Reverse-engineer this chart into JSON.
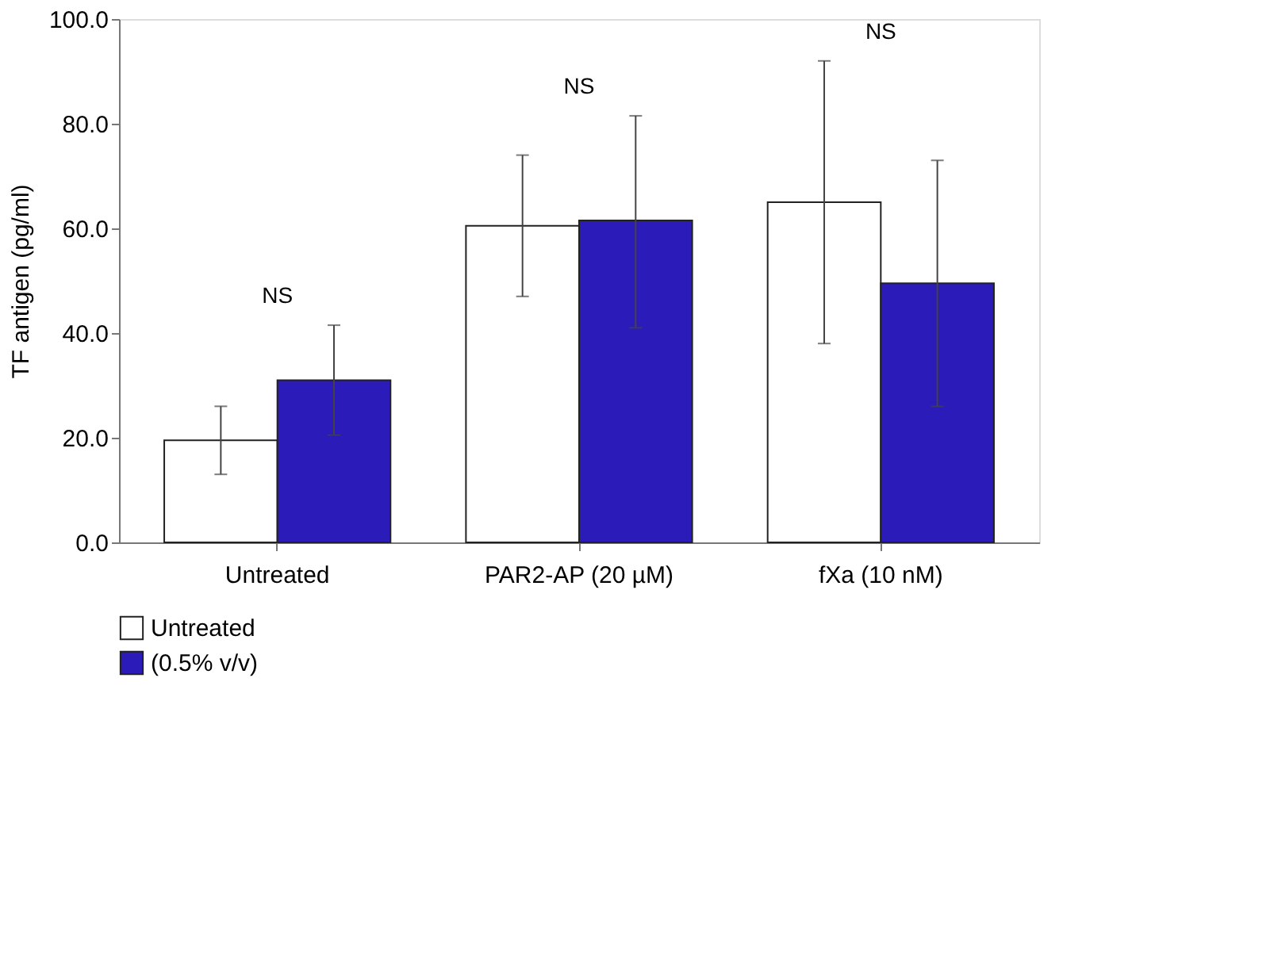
{
  "chart_data": {
    "type": "bar",
    "ylabel": "TF antigen (pg/ml)",
    "categories": [
      "Untreated",
      "PAR2-AP (20 µM)",
      "fXa (10 nM)"
    ],
    "series": [
      {
        "name": "Untreated",
        "color": "#ffffff",
        "values": [
          19.5,
          60.5,
          65
        ],
        "errors": [
          [
            13,
            26
          ],
          [
            47,
            74
          ],
          [
            38,
            92
          ]
        ]
      },
      {
        "name": "(0.5% v/v)",
        "color": "#2b1bb8",
        "values": [
          31,
          61.5,
          49.5
        ],
        "errors": [
          [
            20.5,
            41.5
          ],
          [
            41,
            81.5
          ],
          [
            26,
            73
          ]
        ]
      }
    ],
    "ylim": [
      0,
      100
    ],
    "yticks": [
      {
        "value": 0,
        "label": "0.0"
      },
      {
        "value": 20,
        "label": "20.0"
      },
      {
        "value": 40,
        "label": "40.0"
      },
      {
        "value": 60,
        "label": "60.0"
      },
      {
        "value": 80,
        "label": "80.0"
      },
      {
        "value": 100,
        "label": "100.0"
      }
    ],
    "grid": false,
    "legend": "bottom",
    "annotations": [
      "NS",
      "NS",
      "NS"
    ]
  }
}
